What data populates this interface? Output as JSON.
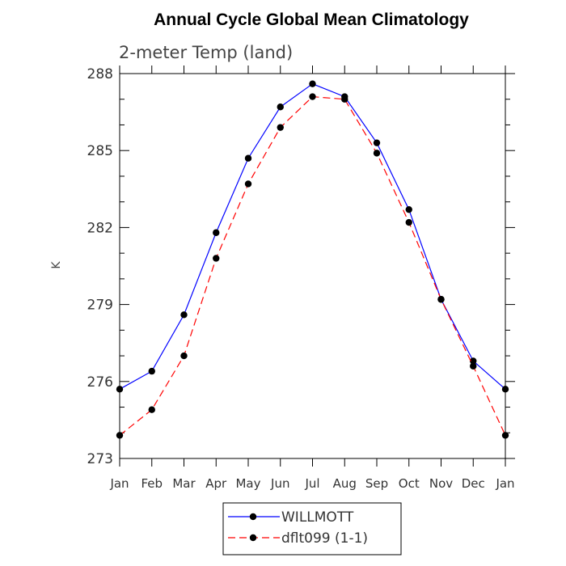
{
  "chart_data": {
    "type": "line",
    "title": "Annual Cycle Global Mean Climatology",
    "subtitle": "2-meter Temp (land)",
    "xlabel": "",
    "ylabel": "K",
    "categories": [
      "Jan",
      "Feb",
      "Mar",
      "Apr",
      "May",
      "Jun",
      "Jul",
      "Aug",
      "Sep",
      "Oct",
      "Nov",
      "Dec",
      "Jan"
    ],
    "ylim": [
      273,
      288
    ],
    "yticks": [
      273,
      276,
      279,
      282,
      285,
      288
    ],
    "series": [
      {
        "name": "WILLMOTT",
        "color": "#0000ff",
        "style": "solid",
        "values": [
          275.7,
          276.4,
          278.6,
          281.8,
          284.7,
          286.7,
          287.6,
          287.1,
          285.3,
          282.7,
          279.2,
          276.8,
          275.7
        ]
      },
      {
        "name": "dflt099 (1-1)",
        "color": "#ff0000",
        "style": "dashed",
        "values": [
          273.9,
          274.9,
          277.0,
          280.8,
          283.7,
          285.9,
          287.1,
          287.0,
          284.9,
          282.2,
          279.2,
          276.6,
          273.9
        ]
      }
    ],
    "legend_position": "bottom-center",
    "grid": false
  }
}
